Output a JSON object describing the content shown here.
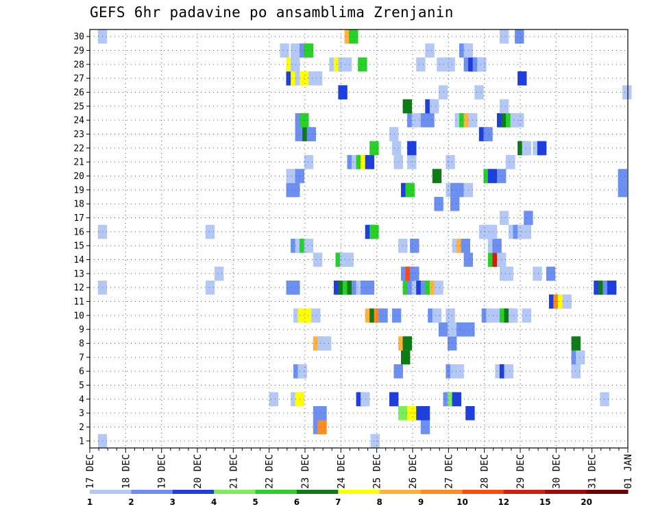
{
  "chart_data": {
    "type": "heatmap",
    "title": "GEFS 6hr padavine po ansamblima Zrenjanin",
    "x_tick_labels": [
      "17 DEC",
      "18 DEC",
      "19 DEC",
      "20 DEC",
      "21 DEC",
      "22 DEC",
      "23 DEC",
      "24 DEC",
      "25 DEC",
      "26 DEC",
      "27 DEC",
      "28 DEC",
      "29 DEC",
      "30 DEC",
      "31 DEC",
      "01 JAN"
    ],
    "y_tick_labels": [
      "1",
      "2",
      "3",
      "4",
      "5",
      "6",
      "7",
      "8",
      "9",
      "10",
      "11",
      "12",
      "13",
      "14",
      "15",
      "16",
      "17",
      "18",
      "19",
      "20",
      "21",
      "22",
      "23",
      "24",
      "25",
      "26",
      "27",
      "28",
      "29",
      "30"
    ],
    "x_unit": "6-hour step (4 per day) from 17 DEC",
    "x_range": [
      0,
      60
    ],
    "y_range": [
      0.5,
      30.5
    ],
    "grid": true,
    "legend": {
      "placement": "bottom",
      "levels": [
        "1",
        "2",
        "3",
        "4",
        "5",
        "6",
        "7",
        "8",
        "9",
        "10",
        "12",
        "15",
        "20"
      ],
      "colors": [
        "#b4c8f5",
        "#6c8ff0",
        "#1e3fdc",
        "#7aee5a",
        "#2ad02a",
        "#0f7a18",
        "#ffff00",
        "#ffb23c",
        "#ff8c1e",
        "#ff4b0a",
        "#d21e0a",
        "#a00a0a",
        "#6e0000"
      ]
    },
    "cells": [
      [
        1,
        1.4,
        1
      ],
      [
        1,
        31.8,
        1
      ],
      [
        2,
        25.4,
        2
      ],
      [
        2,
        25.9,
        9
      ],
      [
        2,
        37.4,
        2
      ],
      [
        3,
        25.4,
        2
      ],
      [
        3,
        25.9,
        2
      ],
      [
        3,
        34.9,
        4
      ],
      [
        3,
        35.9,
        7
      ],
      [
        3,
        36.9,
        3
      ],
      [
        3,
        37.4,
        3
      ],
      [
        3,
        42.4,
        3
      ],
      [
        4,
        20.5,
        1
      ],
      [
        4,
        22.9,
        1
      ],
      [
        4,
        23.4,
        7
      ],
      [
        4,
        30.2,
        3
      ],
      [
        4,
        30.7,
        1
      ],
      [
        4,
        33.9,
        3
      ],
      [
        4,
        39.9,
        2
      ],
      [
        4,
        40.4,
        4
      ],
      [
        4,
        40.9,
        3
      ],
      [
        4,
        57.4,
        1
      ],
      [
        6,
        23.2,
        2
      ],
      [
        6,
        23.7,
        1
      ],
      [
        6,
        34.4,
        2
      ],
      [
        6,
        40.2,
        2
      ],
      [
        6,
        40.7,
        1
      ],
      [
        6,
        41.2,
        1
      ],
      [
        6,
        45.7,
        1
      ],
      [
        6,
        46.2,
        3
      ],
      [
        6,
        46.7,
        1
      ],
      [
        6,
        54.2,
        1
      ],
      [
        7,
        35.2,
        6
      ],
      [
        7,
        54.2,
        2
      ],
      [
        7,
        54.7,
        1
      ],
      [
        8,
        25.4,
        8
      ],
      [
        8,
        25.9,
        1
      ],
      [
        8,
        26.4,
        1
      ],
      [
        8,
        34.9,
        8
      ],
      [
        8,
        35.4,
        6
      ],
      [
        8,
        40.4,
        2
      ],
      [
        8,
        54.2,
        6
      ],
      [
        9,
        39.4,
        2
      ],
      [
        9,
        40.4,
        1
      ],
      [
        9,
        41.4,
        2
      ],
      [
        9,
        42.4,
        2
      ],
      [
        10,
        23.2,
        1
      ],
      [
        10,
        23.7,
        7
      ],
      [
        10,
        24.2,
        7
      ],
      [
        10,
        24.7,
        7
      ],
      [
        10,
        25.2,
        1
      ],
      [
        10,
        31.2,
        8
      ],
      [
        10,
        31.7,
        6
      ],
      [
        10,
        32.2,
        9
      ],
      [
        10,
        32.7,
        2
      ],
      [
        10,
        34.2,
        2
      ],
      [
        10,
        38.2,
        2
      ],
      [
        10,
        38.7,
        1
      ],
      [
        10,
        40.2,
        1
      ],
      [
        10,
        44.2,
        2
      ],
      [
        10,
        44.7,
        1
      ],
      [
        10,
        45.7,
        1
      ],
      [
        10,
        46.2,
        5
      ],
      [
        10,
        46.7,
        6
      ],
      [
        10,
        47.2,
        1
      ],
      [
        10,
        48.7,
        1
      ],
      [
        11,
        51.7,
        3
      ],
      [
        11,
        52.2,
        9
      ],
      [
        11,
        52.7,
        7
      ],
      [
        11,
        53.2,
        1
      ],
      [
        12,
        1.4,
        1
      ],
      [
        12,
        13.4,
        1
      ],
      [
        12,
        22.4,
        2
      ],
      [
        12,
        22.9,
        2
      ],
      [
        12,
        27.7,
        3
      ],
      [
        12,
        28.2,
        6
      ],
      [
        12,
        28.7,
        5
      ],
      [
        12,
        29.2,
        6
      ],
      [
        12,
        29.7,
        2
      ],
      [
        12,
        30.2,
        1
      ],
      [
        12,
        30.7,
        2
      ],
      [
        12,
        31.2,
        2
      ],
      [
        12,
        35.4,
        5
      ],
      [
        12,
        35.9,
        2
      ],
      [
        12,
        36.4,
        1
      ],
      [
        12,
        36.9,
        3
      ],
      [
        12,
        37.4,
        2
      ],
      [
        12,
        37.9,
        5
      ],
      [
        12,
        38.4,
        8
      ],
      [
        12,
        38.9,
        1
      ],
      [
        12,
        56.7,
        3
      ],
      [
        12,
        57.2,
        6
      ],
      [
        12,
        57.7,
        2
      ],
      [
        12,
        58.2,
        3
      ],
      [
        13,
        14.4,
        1
      ],
      [
        13,
        35.2,
        2
      ],
      [
        13,
        35.7,
        10
      ],
      [
        13,
        36.2,
        2
      ],
      [
        13,
        46.2,
        1
      ],
      [
        13,
        46.7,
        1
      ],
      [
        13,
        49.9,
        1
      ],
      [
        13,
        51.4,
        2
      ],
      [
        14,
        25.4,
        1
      ],
      [
        14,
        27.9,
        5
      ],
      [
        14,
        28.4,
        1
      ],
      [
        14,
        28.9,
        1
      ],
      [
        14,
        42.2,
        2
      ],
      [
        14,
        44.9,
        5
      ],
      [
        14,
        45.4,
        11
      ],
      [
        14,
        45.9,
        1
      ],
      [
        15,
        22.9,
        2
      ],
      [
        15,
        23.4,
        1
      ],
      [
        15,
        23.9,
        5
      ],
      [
        15,
        24.4,
        1
      ],
      [
        15,
        34.9,
        1
      ],
      [
        15,
        36.2,
        2
      ],
      [
        15,
        40.9,
        1
      ],
      [
        15,
        41.4,
        8
      ],
      [
        15,
        41.9,
        2
      ],
      [
        15,
        44.9,
        1
      ],
      [
        15,
        45.4,
        2
      ],
      [
        16,
        1.4,
        1
      ],
      [
        16,
        13.4,
        1
      ],
      [
        16,
        31.2,
        3
      ],
      [
        16,
        31.7,
        5
      ],
      [
        16,
        43.9,
        1
      ],
      [
        16,
        44.4,
        1
      ],
      [
        16,
        44.9,
        1
      ],
      [
        16,
        47.2,
        1
      ],
      [
        16,
        47.7,
        2
      ],
      [
        16,
        48.2,
        1
      ],
      [
        16,
        48.7,
        1
      ],
      [
        17,
        46.2,
        1
      ],
      [
        17,
        48.9,
        2
      ],
      [
        18,
        38.9,
        2
      ],
      [
        18,
        40.7,
        2
      ],
      [
        19,
        22.4,
        2
      ],
      [
        19,
        22.9,
        2
      ],
      [
        19,
        35.2,
        3
      ],
      [
        19,
        35.7,
        5
      ],
      [
        19,
        40.2,
        1
      ],
      [
        19,
        40.7,
        2
      ],
      [
        19,
        41.2,
        2
      ],
      [
        19,
        42.2,
        1
      ],
      [
        19,
        59.4,
        2
      ],
      [
        20,
        22.4,
        1
      ],
      [
        20,
        22.9,
        1
      ],
      [
        20,
        23.4,
        2
      ],
      [
        20,
        38.7,
        6
      ],
      [
        20,
        44.4,
        5
      ],
      [
        20,
        44.9,
        3
      ],
      [
        20,
        45.9,
        2
      ],
      [
        20,
        59.4,
        2
      ],
      [
        21,
        24.4,
        1
      ],
      [
        21,
        29.2,
        2
      ],
      [
        21,
        29.7,
        1
      ],
      [
        21,
        30.2,
        5
      ],
      [
        21,
        30.7,
        7
      ],
      [
        21,
        31.2,
        3
      ],
      [
        21,
        34.4,
        1
      ],
      [
        21,
        35.9,
        1
      ],
      [
        21,
        40.2,
        1
      ],
      [
        21,
        46.9,
        1
      ],
      [
        22,
        31.7,
        5
      ],
      [
        22,
        34.2,
        1
      ],
      [
        22,
        35.9,
        3
      ],
      [
        22,
        48.2,
        6
      ],
      [
        22,
        48.7,
        1
      ],
      [
        22,
        49.9,
        1
      ],
      [
        22,
        50.4,
        3
      ],
      [
        23,
        23.4,
        2
      ],
      [
        23,
        24.2,
        6
      ],
      [
        23,
        24.7,
        2
      ],
      [
        23,
        33.9,
        1
      ],
      [
        23,
        43.9,
        3
      ],
      [
        23,
        44.4,
        2
      ],
      [
        24,
        23.4,
        2
      ],
      [
        24,
        23.9,
        5
      ],
      [
        24,
        35.9,
        2
      ],
      [
        24,
        36.4,
        1
      ],
      [
        24,
        37.4,
        2
      ],
      [
        24,
        37.9,
        2
      ],
      [
        24,
        41.2,
        1
      ],
      [
        24,
        41.7,
        5
      ],
      [
        24,
        42.2,
        8
      ],
      [
        24,
        42.7,
        1
      ],
      [
        24,
        45.9,
        3
      ],
      [
        24,
        46.4,
        6
      ],
      [
        24,
        46.9,
        5
      ],
      [
        24,
        47.4,
        1
      ],
      [
        24,
        47.9,
        1
      ],
      [
        25,
        35.4,
        6
      ],
      [
        25,
        37.9,
        3
      ],
      [
        25,
        38.4,
        1
      ],
      [
        25,
        46.2,
        1
      ],
      [
        26,
        28.2,
        3
      ],
      [
        26,
        39.4,
        1
      ],
      [
        26,
        43.4,
        1
      ],
      [
        26,
        59.9,
        1
      ],
      [
        27,
        22.4,
        3
      ],
      [
        27,
        22.9,
        7
      ],
      [
        27,
        23.4,
        1
      ],
      [
        27,
        23.9,
        7
      ],
      [
        27,
        24.4,
        7
      ],
      [
        27,
        24.9,
        1
      ],
      [
        27,
        25.4,
        1
      ],
      [
        27,
        48.2,
        3
      ],
      [
        28,
        22.4,
        7
      ],
      [
        28,
        22.9,
        1
      ],
      [
        28,
        27.2,
        1
      ],
      [
        28,
        27.7,
        7
      ],
      [
        28,
        28.2,
        1
      ],
      [
        28,
        28.7,
        1
      ],
      [
        28,
        30.4,
        5
      ],
      [
        28,
        36.9,
        1
      ],
      [
        28,
        39.2,
        1
      ],
      [
        28,
        39.7,
        1
      ],
      [
        28,
        40.2,
        1
      ],
      [
        28,
        42.2,
        2
      ],
      [
        28,
        42.7,
        3
      ],
      [
        28,
        43.2,
        2
      ],
      [
        28,
        43.7,
        1
      ],
      [
        29,
        21.7,
        1
      ],
      [
        29,
        22.9,
        1
      ],
      [
        29,
        23.9,
        2
      ],
      [
        29,
        24.4,
        5
      ],
      [
        29,
        37.9,
        1
      ],
      [
        29,
        41.7,
        2
      ],
      [
        29,
        42.2,
        1
      ],
      [
        30,
        1.4,
        1
      ],
      [
        30,
        28.9,
        8
      ],
      [
        30,
        29.4,
        5
      ],
      [
        30,
        46.2,
        1
      ],
      [
        30,
        47.9,
        2
      ]
    ]
  }
}
